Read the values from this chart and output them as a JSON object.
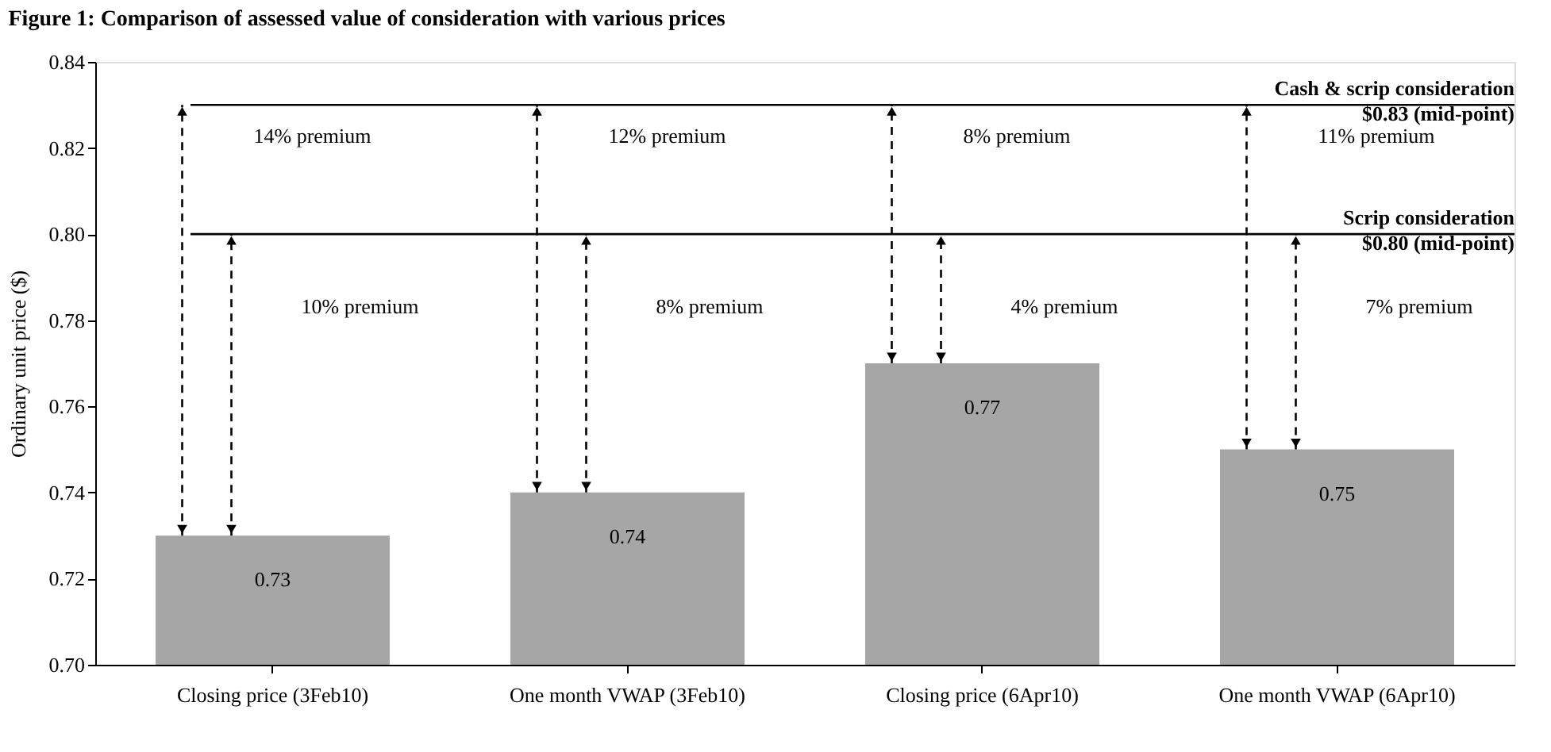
{
  "chart_data": {
    "type": "bar",
    "title": "Figure 1: Comparison of assessed value of consideration with various prices",
    "ylabel": "Ordinary unit price ($)",
    "categories": [
      "Closing price (3Feb10)",
      "One month VWAP (3Feb10)",
      "Closing price (6Apr10)",
      "One month VWAP (6Apr10)"
    ],
    "values": [
      0.73,
      0.74,
      0.77,
      0.75
    ],
    "color": "#a6a6a6",
    "data_labels": true,
    "ylim": [
      0.7,
      0.84
    ],
    "yticks": [
      {
        "value": 0.7,
        "label": "0.70"
      },
      {
        "value": 0.72,
        "label": "0.72"
      },
      {
        "value": 0.74,
        "label": "0.74"
      },
      {
        "value": 0.76,
        "label": "0.76"
      },
      {
        "value": 0.78,
        "label": "0.78"
      },
      {
        "value": 0.8,
        "label": "0.80"
      },
      {
        "value": 0.82,
        "label": "0.82"
      },
      {
        "value": 0.84,
        "label": "0.84"
      }
    ],
    "ref_lines": [
      {
        "axis": "y",
        "value": 0.83,
        "label": "Cash & scrip consideration\n$0.83 (mid-point)",
        "color": "#000000"
      },
      {
        "axis": "y",
        "value": 0.8,
        "label": "Scrip consideration\n$0.80 (mid-point)",
        "color": "#000000"
      }
    ],
    "annotations": [
      "14% premium",
      "10% premium",
      "12% premium",
      "8% premium",
      "8% premium",
      "4% premium",
      "11% premium",
      "7% premium"
    ],
    "grid": false
  }
}
